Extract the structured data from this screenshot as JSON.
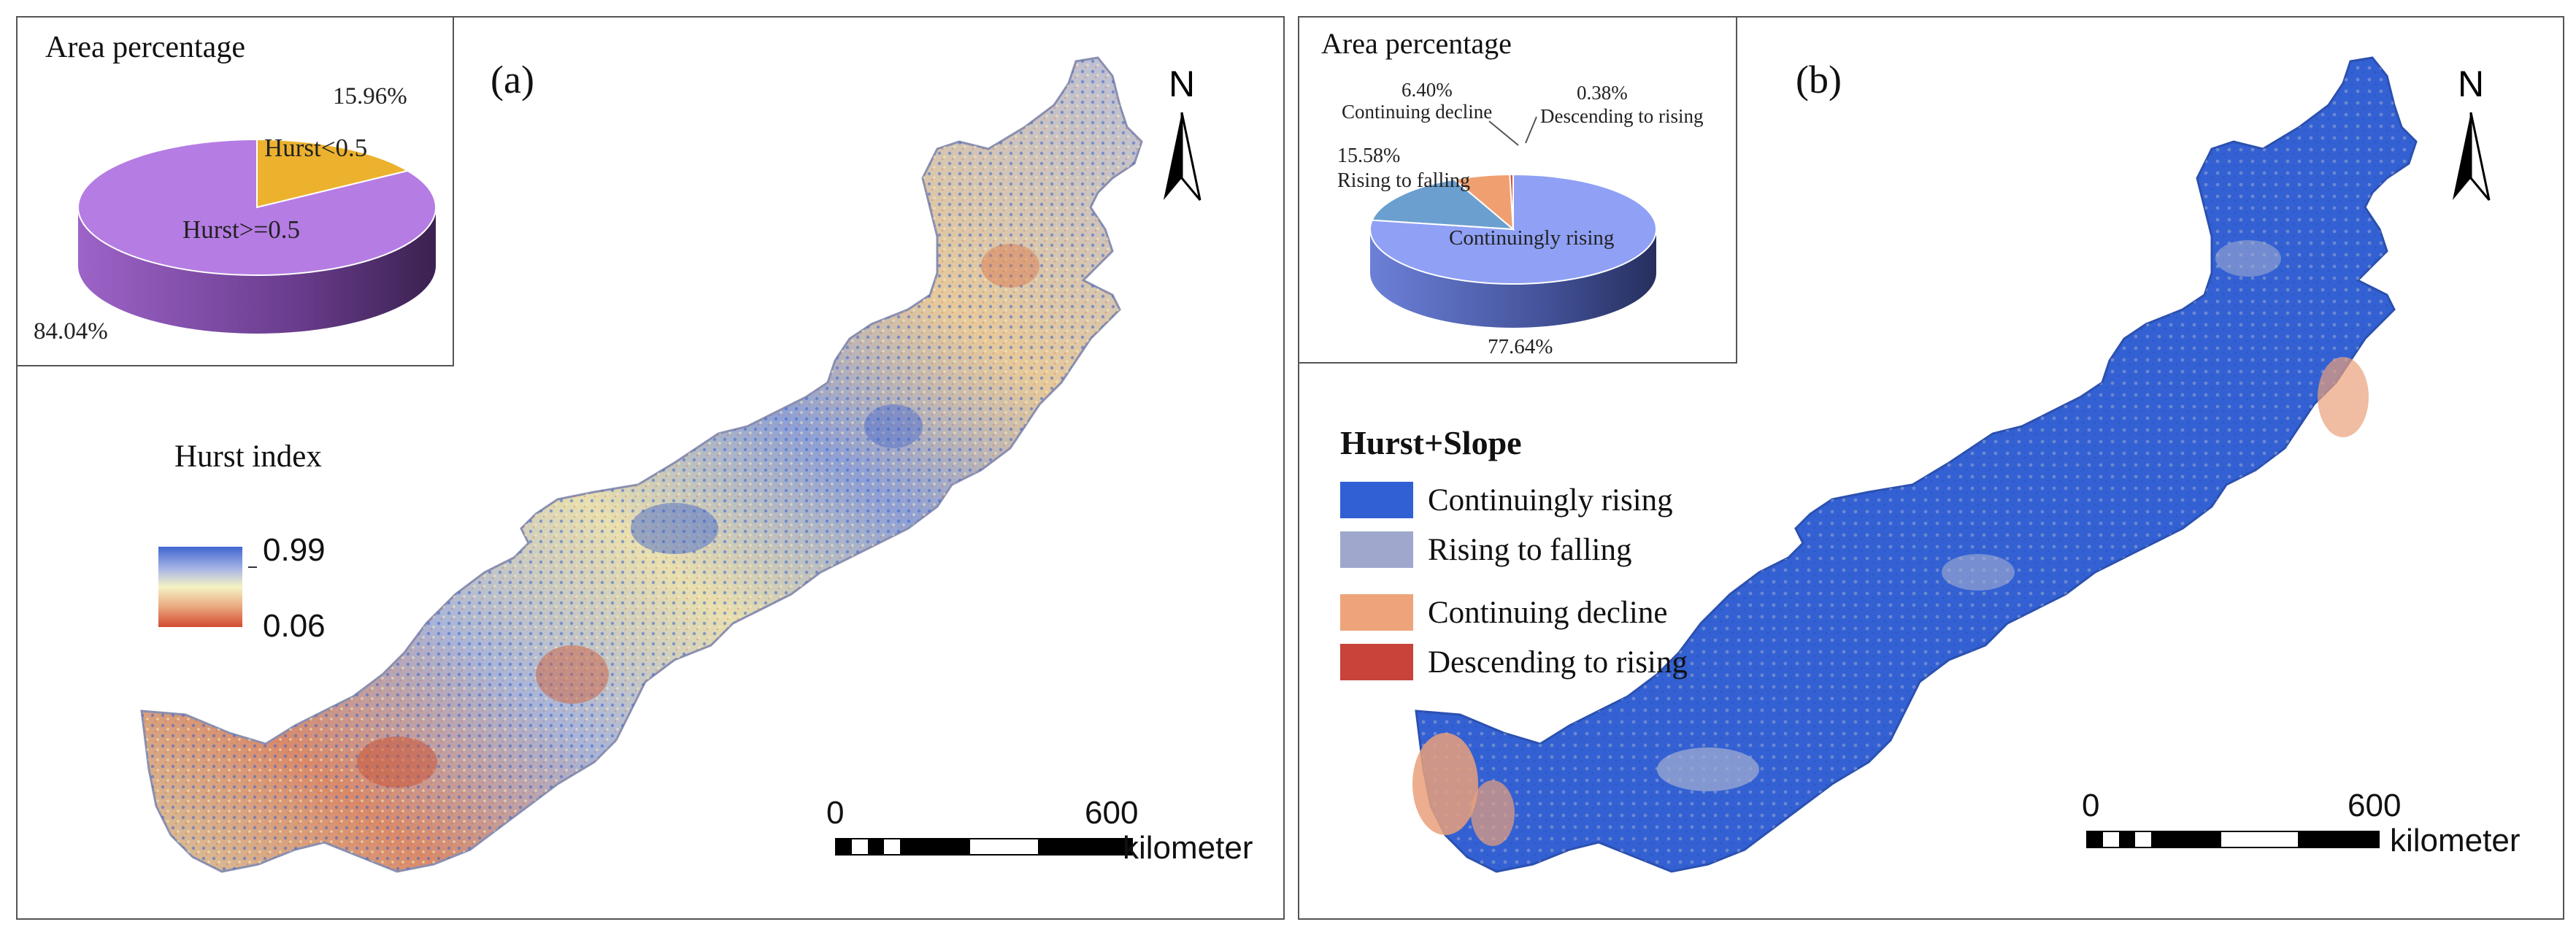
{
  "panel_a": {
    "label": "(a)",
    "inset_title": "Area percentage",
    "pie": {
      "slices": [
        {
          "name": "Hurst>=0.5",
          "percent": 84.04,
          "label": "Hurst>=0.5",
          "percent_label": "84.04%",
          "color": "#b57ce3"
        },
        {
          "name": "Hurst<0.5",
          "percent": 15.96,
          "label": "Hurst<0.5",
          "percent_label": "15.96%",
          "color": "#ecb22e"
        }
      ]
    },
    "legend_title": "Hurst index",
    "colorbar": {
      "max_label": "0.99",
      "min_label": "0.06",
      "max": 0.99,
      "min": 0.06
    },
    "north_label": "N",
    "scale": {
      "start_label": "0",
      "end_label": "600",
      "unit": "kilometer"
    }
  },
  "panel_b": {
    "label": "(b)",
    "inset_title": "Area percentage",
    "pie": {
      "slices": [
        {
          "name": "Continuingly rising",
          "percent": 77.64,
          "label": "Continuingly rising",
          "percent_label": "77.64%",
          "color": "#8fa0f5"
        },
        {
          "name": "Rising to falling",
          "percent": 15.58,
          "label": "Rising to falling",
          "percent_label": "15.58%",
          "color": "#6b9fcf"
        },
        {
          "name": "Continuing decline",
          "percent": 6.4,
          "label": "Continuing decline",
          "percent_label": "6.40%",
          "color": "#f0a070"
        },
        {
          "name": "Descending to rising",
          "percent": 0.38,
          "label": "Descending to rising",
          "percent_label": "0.38%",
          "color": "#d4543c"
        }
      ]
    },
    "legend_title": "Hurst+Slope",
    "legend_items": [
      {
        "label": "Continuingly rising",
        "color": "#3060d4"
      },
      {
        "label": "Rising to falling",
        "color": "#9fa8cc"
      },
      {
        "label": "Continuing decline",
        "color": "#eea47a"
      },
      {
        "label": "Descending to rising",
        "color": "#c8433a"
      }
    ],
    "north_label": "N",
    "scale": {
      "start_label": "0",
      "end_label": "600",
      "unit": "kilometer"
    }
  }
}
